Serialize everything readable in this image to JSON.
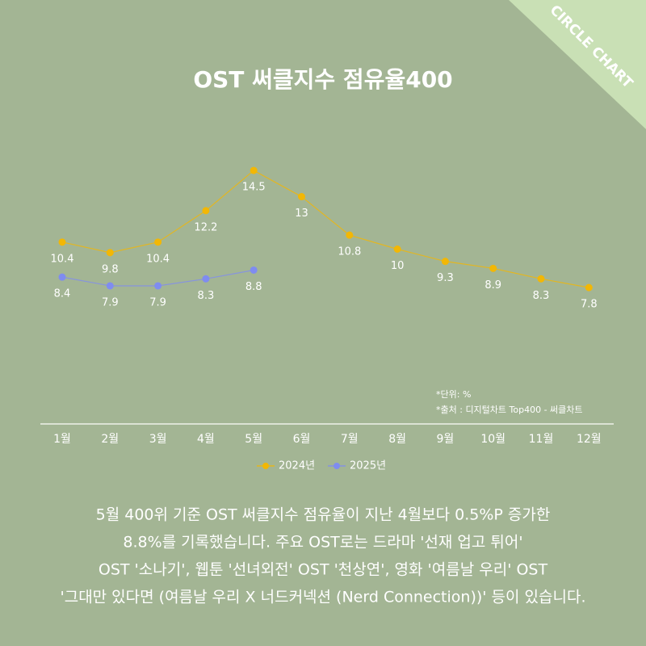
{
  "chart_data": {
    "type": "line",
    "badge": "CIRCLE CHART",
    "title": "OST 써클지수 점유율400",
    "categories": [
      "1월",
      "2월",
      "3월",
      "4월",
      "5월",
      "6월",
      "7월",
      "8월",
      "9월",
      "10월",
      "11월",
      "12월"
    ],
    "series": [
      {
        "name": "2024년",
        "color": "#f2b705",
        "values": [
          10.4,
          9.8,
          10.4,
          12.2,
          14.5,
          13,
          10.8,
          10,
          9.3,
          8.9,
          8.3,
          7.8
        ]
      },
      {
        "name": "2025년",
        "color": "#7f8cf0",
        "values": [
          8.4,
          7.9,
          7.9,
          8.3,
          8.8,
          null,
          null,
          null,
          null,
          null,
          null,
          null
        ]
      }
    ],
    "ylim": [
      0,
      20
    ],
    "notes": [
      "*단위: %",
      "*출처 : 디지털차트 Top400 - 써클차트"
    ],
    "description": [
      "5월 400위 기준 OST 써클지수 점유율이 지난 4월보다 0.5%P 증가한",
      "8.8%를 기록했습니다. 주요 OST로는 드라마 '선재 업고 튀어'",
      "OST '소나기', 웹툰 '선녀외전' OST '천상연', 영화 '여름날 우리' OST",
      "'그대만 있다면 (여름날 우리 X 너드커넥션 (Nerd Connection))' 등이 있습니다."
    ]
  }
}
